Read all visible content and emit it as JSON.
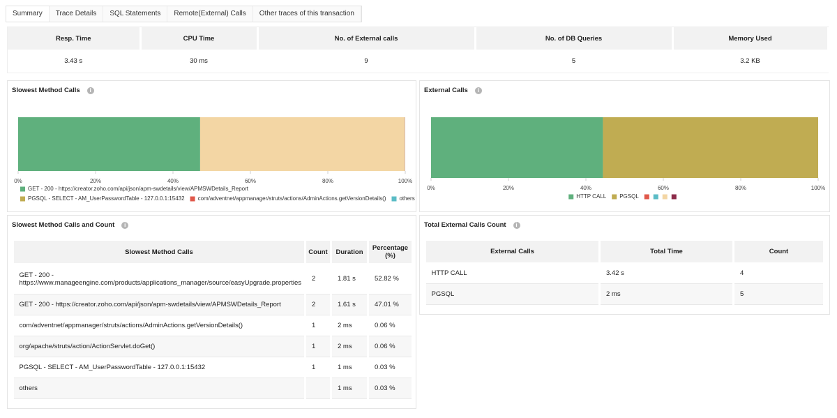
{
  "tabs": [
    "Summary",
    "Trace Details",
    "SQL Statements",
    "Remote(External) Calls",
    "Other traces of this transaction"
  ],
  "summary": {
    "headers": [
      "Resp. Time",
      "CPU Time",
      "No. of External calls",
      "No. of DB Queries",
      "Memory Used"
    ],
    "values": [
      "3.43 s",
      "30 ms",
      "9",
      "5",
      "3.2 KB"
    ]
  },
  "slowest_chart": {
    "title": "Slowest Method Calls",
    "chart_data": {
      "type": "stacked-bar",
      "xlim": [
        0,
        100
      ],
      "xticks": [
        {
          "value": 0,
          "label": "0%"
        },
        {
          "value": 20,
          "label": "20%"
        },
        {
          "value": 40,
          "label": "40%"
        },
        {
          "value": 60,
          "label": "60%"
        },
        {
          "value": 80,
          "label": "80%"
        },
        {
          "value": 100,
          "label": "100%"
        }
      ],
      "series": [
        {
          "name": "GET - 200 - https://creator.zoho.com/api/json/apm-swdetails/view/APMSWDetails_Report",
          "color": "#5fb07d",
          "values": [
            47.01
          ]
        },
        {
          "color": "#f3d6a4",
          "values": [
            52.82
          ]
        },
        {
          "name": "PGSQL - SELECT - AM_UserPasswordTable - 127.0.0.1:15432",
          "color": "#c0ac52",
          "values": [
            0.03
          ]
        },
        {
          "name": "com/adventnet/appmanager/struts/actions/AdminActions.getVersionDetails()",
          "color": "#e0584a",
          "values": [
            0.06
          ]
        },
        {
          "name": "others",
          "color": "#5bbcc6",
          "values": [
            0.03
          ]
        }
      ],
      "legend": "bottom-left"
    }
  },
  "external_chart": {
    "title": "External Calls",
    "chart_data": {
      "type": "stacked-bar",
      "xlim": [
        0,
        100
      ],
      "xticks": [
        {
          "value": 0,
          "label": "0%"
        },
        {
          "value": 20,
          "label": "20%"
        },
        {
          "value": 40,
          "label": "40%"
        },
        {
          "value": 60,
          "label": "60%"
        },
        {
          "value": 80,
          "label": "80%"
        },
        {
          "value": 100,
          "label": "100%"
        }
      ],
      "series": [
        {
          "name": "HTTP CALL",
          "color": "#5fb07d",
          "values": [
            44.4
          ]
        },
        {
          "name": "PGSQL",
          "color": "#c0ac52",
          "values": [
            55.6
          ]
        }
      ],
      "unlabeled_legend_colors": [
        "#e0584a",
        "#5bbcc6",
        "#f3d6a4",
        "#8c2b4a"
      ],
      "legend": "bottom-center"
    }
  },
  "slowest_table": {
    "title": "Slowest Method Calls and Count",
    "headers": [
      "Slowest Method Calls",
      "Count",
      "Duration",
      "Percentage (%)"
    ],
    "rows": [
      [
        "GET - 200 - https://www.manageengine.com/products/applications_manager/source/easyUpgrade.properties",
        "2",
        "1.81 s",
        "52.82 %"
      ],
      [
        "GET - 200 - https://creator.zoho.com/api/json/apm-swdetails/view/APMSWDetails_Report",
        "2",
        "1.61 s",
        "47.01 %"
      ],
      [
        "com/adventnet/appmanager/struts/actions/AdminActions.getVersionDetails()",
        "1",
        "2 ms",
        "0.06 %"
      ],
      [
        "org/apache/struts/action/ActionServlet.doGet()",
        "1",
        "2 ms",
        "0.06 %"
      ],
      [
        "PGSQL - SELECT - AM_UserPasswordTable - 127.0.0.1:15432",
        "1",
        "1 ms",
        "0.03 %"
      ],
      [
        "others",
        null,
        "1 ms",
        "0.03 %"
      ]
    ]
  },
  "external_table": {
    "title": "Total External Calls Count",
    "headers": [
      "External Calls",
      "Total Time",
      "Count"
    ],
    "rows": [
      [
        "HTTP CALL",
        "3.42 s",
        "4"
      ],
      [
        "PGSQL",
        "2 ms",
        "5"
      ]
    ]
  }
}
